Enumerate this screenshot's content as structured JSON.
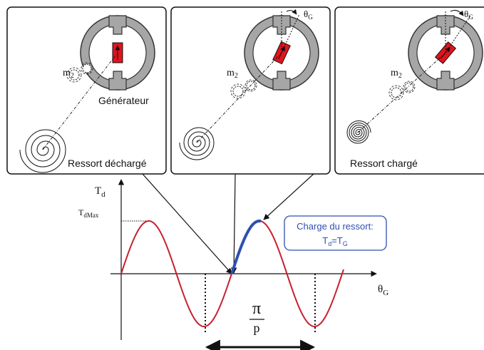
{
  "panels": [
    {
      "label": "Ressort déchargé",
      "gen_label": "Générateur",
      "m_label": "m",
      "m_sub": "2",
      "theta_label": ""
    },
    {
      "label": "",
      "gen_label": "",
      "m_label": "m",
      "m_sub": "2",
      "theta_label": "θ",
      "theta_sub": "G"
    },
    {
      "label": "Ressort chargé",
      "gen_label": "",
      "m_label": "m",
      "m_sub": "2",
      "theta_label": "θ",
      "theta_sub": "G"
    }
  ],
  "graph": {
    "y_axis_label": "T",
    "y_axis_sub": "d",
    "x_axis_label": "θ",
    "x_axis_sub": "G",
    "max_label": "T",
    "max_sub": "dMax",
    "period_num": "π",
    "period_den": "p",
    "charge_title": "Charge du ressort:",
    "charge_eq_a": "T",
    "charge_eq_a_sub": "d",
    "charge_eq_mid": "=T",
    "charge_eq_b_sub": "G"
  },
  "colors": {
    "curve": "#c8202f",
    "charge": "#2f4fb0",
    "rotor": "#e0141e",
    "stator": "#a6a6a6"
  }
}
